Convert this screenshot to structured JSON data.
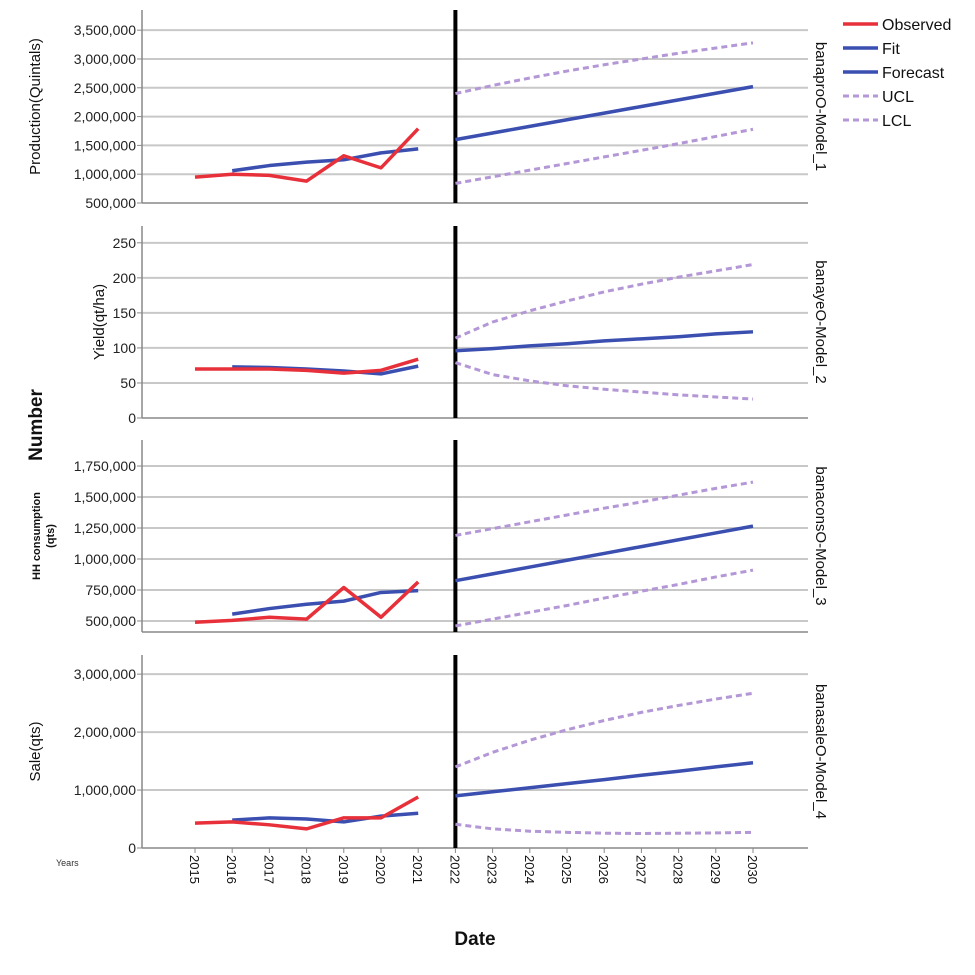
{
  "chart_data": {
    "type": "line",
    "shared_ylabel": "Number",
    "xlabel": "Date",
    "x_note": "Years",
    "x": [
      2015,
      2016,
      2017,
      2018,
      2019,
      2020,
      2021,
      2022,
      2023,
      2024,
      2025,
      2026,
      2027,
      2028,
      2029,
      2030
    ],
    "forecast_start": 2022,
    "legend": {
      "placement": "top-right",
      "entries": [
        {
          "name": "Observed",
          "color": "#e8303a",
          "style": "solid"
        },
        {
          "name": "Fit",
          "color": "#3a4fb0",
          "style": "solid"
        },
        {
          "name": "Forecast",
          "color": "#3a4fb0",
          "style": "solid"
        },
        {
          "name": "UCL",
          "color": "#b497d6",
          "style": "dashed"
        },
        {
          "name": "LCL",
          "color": "#b497d6",
          "style": "dashed"
        }
      ]
    },
    "panels": [
      {
        "ylabel": "Production(Quintals)",
        "model": "banaproO-Model_1",
        "ylim": [
          500000,
          3850000
        ],
        "yticks": [
          500000,
          1000000,
          1500000,
          2000000,
          2500000,
          3000000,
          3500000
        ],
        "ytick_labels": [
          "500,000",
          "1,000,000",
          "1,500,000",
          "2,000,000",
          "2,500,000",
          "3,000,000",
          "3,500,000"
        ],
        "observed": {
          "x": [
            2015,
            2016,
            2017,
            2018,
            2019,
            2020,
            2021
          ],
          "y": [
            950000,
            1000000,
            980000,
            880000,
            1320000,
            1110000,
            1790000
          ]
        },
        "fit": {
          "x": [
            2016,
            2017,
            2018,
            2019,
            2020,
            2021
          ],
          "y": [
            1060000,
            1150000,
            1210000,
            1250000,
            1370000,
            1440000
          ]
        },
        "forecast": {
          "x": [
            2022,
            2023,
            2024,
            2025,
            2026,
            2027,
            2028,
            2029,
            2030
          ],
          "y": [
            1600000,
            1715000,
            1830000,
            1945000,
            2060000,
            2175000,
            2290000,
            2405000,
            2520000
          ]
        },
        "ucl": {
          "x": [
            2022,
            2023,
            2024,
            2025,
            2026,
            2027,
            2028,
            2029,
            2030
          ],
          "y": [
            2400000,
            2540000,
            2670000,
            2790000,
            2900000,
            3000000,
            3100000,
            3190000,
            3280000
          ]
        },
        "lcl": {
          "x": [
            2022,
            2023,
            2024,
            2025,
            2026,
            2027,
            2028,
            2029,
            2030
          ],
          "y": [
            840000,
            955000,
            1070000,
            1185000,
            1300000,
            1415000,
            1530000,
            1655000,
            1780000
          ]
        }
      },
      {
        "ylabel": "Yield(qt/ha)",
        "model": "banayeO-Model_2",
        "ylim": [
          0,
          274
        ],
        "yticks": [
          0,
          50,
          100,
          150,
          200,
          250
        ],
        "ytick_labels": [
          "0",
          "50",
          "100",
          "150",
          "200",
          "250"
        ],
        "observed": {
          "x": [
            2015,
            2016,
            2017,
            2018,
            2019,
            2020,
            2021
          ],
          "y": [
            70,
            70,
            70,
            68,
            64,
            68,
            84
          ]
        },
        "fit": {
          "x": [
            2016,
            2017,
            2018,
            2019,
            2020,
            2021
          ],
          "y": [
            73,
            72,
            70,
            67,
            63,
            74
          ]
        },
        "forecast": {
          "x": [
            2022,
            2023,
            2024,
            2025,
            2026,
            2027,
            2028,
            2029,
            2030
          ],
          "y": [
            96,
            99,
            103,
            106,
            110,
            113,
            116,
            120,
            123
          ]
        },
        "ucl": {
          "x": [
            2022,
            2023,
            2024,
            2025,
            2026,
            2027,
            2028,
            2029,
            2030
          ],
          "y": [
            114,
            137,
            153,
            167,
            180,
            191,
            201,
            210,
            219
          ]
        },
        "lcl": {
          "x": [
            2022,
            2023,
            2024,
            2025,
            2026,
            2027,
            2028,
            2029,
            2030
          ],
          "y": [
            79,
            62,
            53,
            46,
            41,
            37,
            33,
            30,
            27
          ]
        }
      },
      {
        "ylabel": "HH consumption (qts)",
        "model": "banaconsO-Model_3",
        "ylim": [
          411000,
          1960000
        ],
        "yticks": [
          500000,
          750000,
          1000000,
          1250000,
          1500000,
          1750000
        ],
        "ytick_labels": [
          "500,000",
          "750,000",
          "1,000,000",
          "1,250,000",
          "1,500,000",
          "1,750,000"
        ],
        "observed": {
          "x": [
            2015,
            2016,
            2017,
            2018,
            2019,
            2020,
            2021
          ],
          "y": [
            490000,
            505000,
            530000,
            515000,
            770000,
            530000,
            815000
          ]
        },
        "fit": {
          "x": [
            2016,
            2017,
            2018,
            2019,
            2020,
            2021
          ],
          "y": [
            555000,
            600000,
            635000,
            660000,
            730000,
            745000
          ]
        },
        "forecast": {
          "x": [
            2022,
            2023,
            2024,
            2025,
            2026,
            2027,
            2028,
            2029,
            2030
          ],
          "y": [
            825000,
            880000,
            935000,
            990000,
            1045000,
            1100000,
            1155000,
            1210000,
            1265000
          ]
        },
        "ucl": {
          "x": [
            2022,
            2023,
            2024,
            2025,
            2026,
            2027,
            2028,
            2029,
            2030
          ],
          "y": [
            1190000,
            1245000,
            1300000,
            1355000,
            1410000,
            1460000,
            1515000,
            1570000,
            1620000
          ]
        },
        "lcl": {
          "x": [
            2022,
            2023,
            2024,
            2025,
            2026,
            2027,
            2028,
            2029,
            2030
          ],
          "y": [
            460000,
            515000,
            570000,
            625000,
            685000,
            740000,
            795000,
            855000,
            910000
          ]
        }
      },
      {
        "ylabel": "Sale(qts)",
        "model": "banasaleO-Model_4",
        "ylim": [
          0,
          3330000
        ],
        "yticks": [
          0,
          1000000,
          2000000,
          3000000
        ],
        "ytick_labels": [
          "0",
          "1,000,000",
          "2,000,000",
          "3,000,000"
        ],
        "observed": {
          "x": [
            2015,
            2016,
            2017,
            2018,
            2019,
            2020,
            2021
          ],
          "y": [
            430000,
            450000,
            400000,
            330000,
            520000,
            520000,
            880000
          ]
        },
        "fit": {
          "x": [
            2016,
            2017,
            2018,
            2019,
            2020,
            2021
          ],
          "y": [
            480000,
            520000,
            500000,
            450000,
            550000,
            600000
          ]
        },
        "forecast": {
          "x": [
            2022,
            2023,
            2024,
            2025,
            2026,
            2027,
            2028,
            2029,
            2030
          ],
          "y": [
            900000,
            970000,
            1040000,
            1110000,
            1180000,
            1255000,
            1325000,
            1400000,
            1470000
          ]
        },
        "ucl": {
          "x": [
            2022,
            2023,
            2024,
            2025,
            2026,
            2027,
            2028,
            2029,
            2030
          ],
          "y": [
            1400000,
            1650000,
            1860000,
            2040000,
            2200000,
            2340000,
            2460000,
            2570000,
            2670000
          ]
        },
        "lcl": {
          "x": [
            2022,
            2023,
            2024,
            2025,
            2026,
            2027,
            2028,
            2029,
            2030
          ],
          "y": [
            410000,
            330000,
            290000,
            270000,
            255000,
            250000,
            255000,
            260000,
            270000
          ]
        }
      }
    ]
  }
}
